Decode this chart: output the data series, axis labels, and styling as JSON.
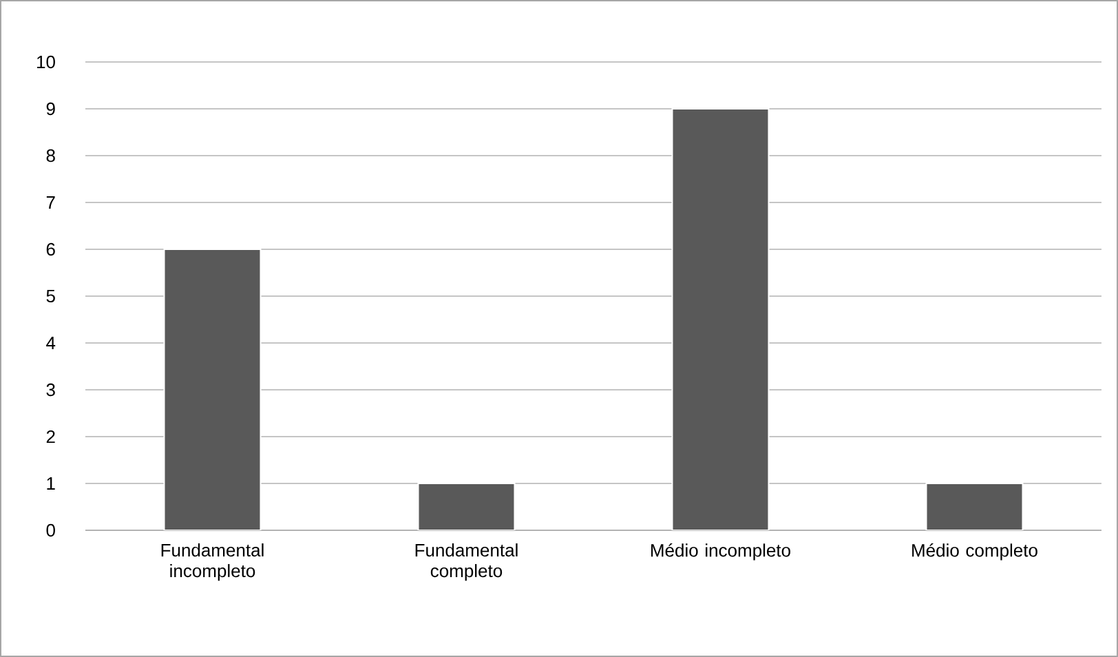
{
  "chart_data": {
    "type": "bar",
    "categories": [
      "Fundamental incompleto",
      "Fundamental completo",
      "Médio incompleto",
      "Médio completo"
    ],
    "values": [
      6,
      1,
      9,
      1
    ],
    "color": "#595959",
    "ylim": [
      0,
      10
    ],
    "yticks": [
      0,
      1,
      2,
      3,
      4,
      5,
      6,
      7,
      8,
      9,
      10
    ],
    "grid": "y"
  }
}
